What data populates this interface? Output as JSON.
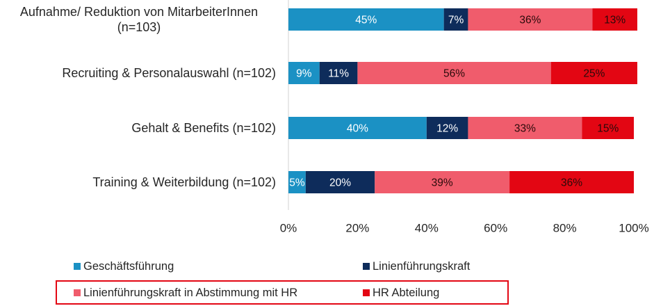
{
  "chart_data": {
    "type": "bar",
    "orientation": "horizontal",
    "stacked": true,
    "title": "",
    "xlabel": "",
    "ylabel": "",
    "xlim": [
      0,
      100
    ],
    "x_ticks": [
      "0%",
      "20%",
      "40%",
      "60%",
      "80%",
      "100%"
    ],
    "x_tick_values": [
      0,
      20,
      40,
      60,
      80,
      100
    ],
    "grid": false,
    "categories": [
      [
        "Aufnahme/ Reduktion von MitarbeiterInnen",
        "(n=103)"
      ],
      [
        "Recruiting & Personalauswahl (n=102)"
      ],
      [
        "Gehalt & Benefits (n=102)"
      ],
      [
        "Training & Weiterbildung (n=102)"
      ]
    ],
    "series": [
      {
        "name": "Geschäftsführung",
        "color": "#1b91c4",
        "label_color": "#ffffff",
        "values": [
          45,
          9,
          40,
          5
        ],
        "labels": [
          "45%",
          "9%",
          "40%",
          "5%"
        ]
      },
      {
        "name": "Linienführungskraft",
        "color": "#0e2c5b",
        "label_color": "#ffffff",
        "values": [
          7,
          11,
          12,
          20
        ],
        "labels": [
          "7%",
          "11%",
          "12%",
          "20%"
        ]
      },
      {
        "name": "Linienführungskraft in Abstimmung mit HR",
        "color": "#f05c6c",
        "label_color": "#2a0a0a",
        "values": [
          36,
          56,
          33,
          39
        ],
        "labels": [
          "36%",
          "56%",
          "33%",
          "39%"
        ]
      },
      {
        "name": "HR Abteilung",
        "color": "#e30613",
        "label_color": "#2a0a0a",
        "values": [
          13,
          25,
          15,
          36
        ],
        "labels": [
          "13%",
          "25%",
          "15%",
          "36%"
        ]
      }
    ],
    "legend": {
      "position": "bottom",
      "columns": 2,
      "highlight_row": 2,
      "highlight_color": "#e30613"
    },
    "axis_color": "#d0d0d0"
  }
}
